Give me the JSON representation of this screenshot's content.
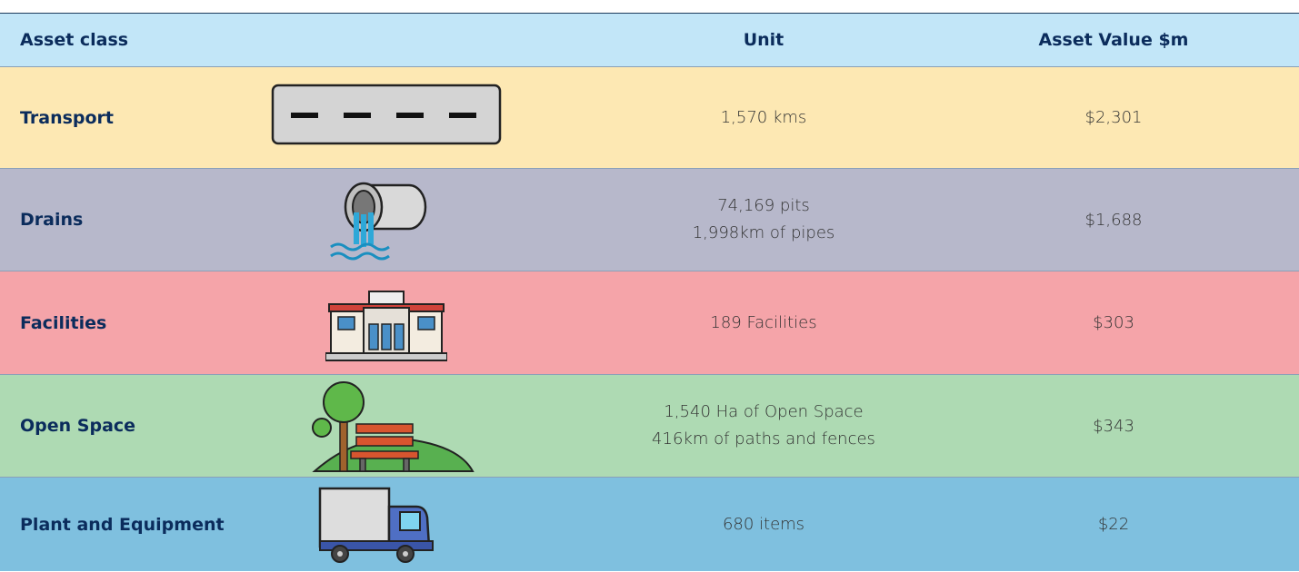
{
  "table": {
    "header": [
      "Asset class",
      "Unit",
      "Asset Value $m"
    ],
    "rows": [
      {
        "asset_class": "Transport",
        "unit": [
          "1,570 kms"
        ],
        "value": "$2,301"
      },
      {
        "asset_class": "Drains",
        "unit": [
          "74,169 pits",
          "1,998km of pipes"
        ],
        "value": "$1,688"
      },
      {
        "asset_class": "Facilities",
        "unit": [
          "189 Facilities"
        ],
        "value": "$303"
      },
      {
        "asset_class": "Open Space",
        "unit": [
          "1,540 Ha of Open Space",
          "416km of paths and fences"
        ],
        "value": "$343"
      },
      {
        "asset_class": "Plant and Equipment",
        "unit": [
          "680 items"
        ],
        "value": "$22"
      }
    ]
  }
}
